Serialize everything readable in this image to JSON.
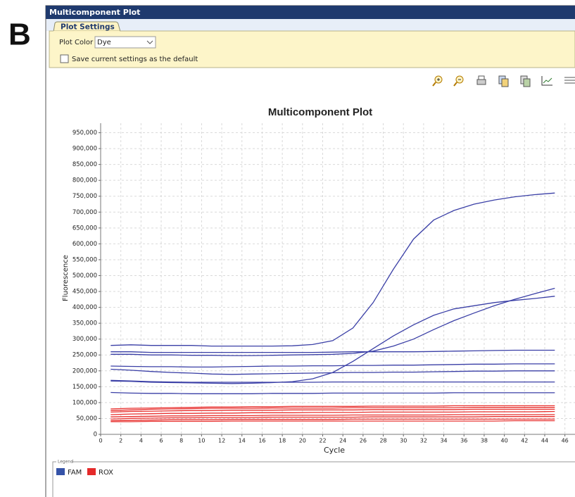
{
  "panel_label": "B",
  "window": {
    "title": "Multicomponent Plot"
  },
  "settings": {
    "tab": "Plot Settings",
    "plot_color_label": "Plot Color",
    "plot_color_value": "Dye",
    "save_default_label": "Save current settings as the default"
  },
  "legend_title": "Legend",
  "chart_data": {
    "type": "line",
    "title": "Multicomponent Plot",
    "xlabel": "Cycle",
    "ylabel": "Fluorescence",
    "x": [
      1,
      3,
      5,
      7,
      9,
      11,
      13,
      15,
      17,
      19,
      21,
      23,
      25,
      27,
      29,
      31,
      33,
      35,
      37,
      39,
      41,
      43,
      45
    ],
    "xlim": [
      0,
      47
    ],
    "xticks": [
      0,
      2,
      4,
      6,
      8,
      10,
      12,
      14,
      16,
      18,
      20,
      22,
      24,
      26,
      28,
      30,
      32,
      34,
      36,
      38,
      40,
      42,
      44,
      46
    ],
    "ylim": [
      0,
      980000
    ],
    "yticks": [
      0,
      {
        "value": 50000,
        "label": "50,000"
      },
      {
        "value": 100000,
        "label": "100,000"
      },
      {
        "value": 150000,
        "label": "150,000"
      },
      {
        "value": 200000,
        "label": "200,000"
      },
      {
        "value": 250000,
        "label": "250,000"
      },
      {
        "value": 300000,
        "label": "300,000"
      },
      {
        "value": 350000,
        "label": "350,000"
      },
      {
        "value": 400000,
        "label": "400,000"
      },
      {
        "value": 450000,
        "label": "450,000"
      },
      {
        "value": 500000,
        "label": "500,000"
      },
      {
        "value": 550000,
        "label": "550,000"
      },
      {
        "value": 600000,
        "label": "600,000"
      },
      {
        "value": 650000,
        "label": "650,000"
      },
      {
        "value": 700000,
        "label": "700,000"
      },
      {
        "value": 750000,
        "label": "750,000"
      },
      {
        "value": 800000,
        "label": "800,000"
      },
      {
        "value": 850000,
        "label": "850,000"
      },
      {
        "value": 900000,
        "label": "900,000"
      },
      {
        "value": 950000,
        "label": "950,000"
      }
    ],
    "grid": true,
    "series": [
      {
        "name": "FAM",
        "color": "#3a3fa6",
        "legend_color": "#3553a8",
        "values": [
          [
            280000,
            282000,
            280000,
            280000,
            280000,
            278000,
            278000,
            278000,
            278000,
            279000,
            283000,
            295000,
            335000,
            415000,
            520000,
            615000,
            675000,
            705000,
            725000,
            738000,
            748000,
            755000,
            760000
          ],
          [
            168000,
            167000,
            164000,
            163000,
            162000,
            161000,
            160000,
            161000,
            163000,
            166000,
            175000,
            195000,
            230000,
            270000,
            310000,
            345000,
            375000,
            395000,
            405000,
            415000,
            422000,
            428000,
            435000
          ],
          [
            252000,
            252000,
            250000,
            250000,
            249000,
            249000,
            248000,
            248000,
            249000,
            250000,
            251000,
            252000,
            255000,
            262000,
            278000,
            300000,
            330000,
            358000,
            382000,
            405000,
            425000,
            443000,
            460000
          ],
          [
            260000,
            260000,
            258000,
            258000,
            258000,
            258000,
            258000,
            258000,
            258000,
            258000,
            258000,
            259000,
            260000,
            260000,
            260000,
            260000,
            261000,
            262000,
            263000,
            264000,
            265000,
            265000,
            265000
          ],
          [
            215000,
            214000,
            213000,
            213000,
            212000,
            212000,
            213000,
            214000,
            215000,
            215000,
            216000,
            216000,
            217000,
            217000,
            218000,
            218000,
            219000,
            220000,
            221000,
            221000,
            222000,
            222000,
            222000
          ],
          [
            205000,
            202000,
            198000,
            195000,
            193000,
            190000,
            189000,
            190000,
            191000,
            192000,
            193000,
            194000,
            195000,
            195000,
            196000,
            196000,
            197000,
            198000,
            199000,
            199000,
            200000,
            200000,
            200000
          ],
          [
            170000,
            168000,
            166000,
            165000,
            164000,
            164000,
            164000,
            164000,
            164000,
            164000,
            164000,
            165000,
            165000,
            165000,
            165000,
            165000,
            165000,
            165000,
            165000,
            165000,
            165000,
            165000,
            165000
          ],
          [
            132000,
            130000,
            129000,
            129000,
            128000,
            128000,
            128000,
            128000,
            129000,
            129000,
            129000,
            130000,
            130000,
            130000,
            130000,
            130000,
            130000,
            131000,
            131000,
            131000,
            131000,
            131000,
            131000
          ]
        ]
      },
      {
        "name": "ROX",
        "color": "#e8312f",
        "legend_color": "#e52a2a",
        "values": [
          [
            80000,
            82000,
            83000,
            84000,
            85000,
            86000,
            86000,
            87000,
            87000,
            88000,
            88000,
            88000,
            88000,
            89000,
            89000,
            89000,
            89000,
            90000,
            90000,
            90000,
            90000,
            90000,
            90000
          ],
          [
            75000,
            77000,
            79000,
            80000,
            81000,
            82000,
            82000,
            82000,
            83000,
            83000,
            83000,
            83000,
            84000,
            84000,
            84000,
            84000,
            84000,
            84000,
            85000,
            85000,
            85000,
            85000,
            85000
          ],
          [
            70000,
            72000,
            73000,
            74000,
            75000,
            75000,
            76000,
            76000,
            76000,
            77000,
            77000,
            77000,
            77000,
            78000,
            78000,
            78000,
            78000,
            78000,
            79000,
            79000,
            79000,
            79000,
            79000
          ],
          [
            62000,
            64000,
            65000,
            66000,
            66000,
            67000,
            67000,
            68000,
            68000,
            68000,
            69000,
            69000,
            69000,
            70000,
            70000,
            70000,
            70000,
            70000,
            71000,
            71000,
            71000,
            71000,
            72000
          ],
          [
            55000,
            56000,
            57000,
            58000,
            58000,
            59000,
            59000,
            59000,
            60000,
            60000,
            60000,
            60000,
            61000,
            61000,
            61000,
            61000,
            61000,
            62000,
            62000,
            62000,
            62000,
            62000,
            62000
          ],
          [
            48000,
            50000,
            51000,
            52000,
            52000,
            53000,
            53000,
            53000,
            54000,
            54000,
            54000,
            54000,
            54000,
            55000,
            55000,
            55000,
            55000,
            55000,
            55000,
            56000,
            56000,
            56000,
            56000
          ],
          [
            43000,
            44000,
            45000,
            46000,
            46000,
            46000,
            47000,
            47000,
            47000,
            47000,
            47000,
            47000,
            48000,
            48000,
            48000,
            48000,
            48000,
            48000,
            48000,
            48000,
            48000,
            48000,
            48000
          ],
          [
            40000,
            40000,
            41000,
            41000,
            41000,
            41000,
            42000,
            42000,
            42000,
            42000,
            42000,
            42000,
            42000,
            42000,
            42000,
            42000,
            42000,
            42000,
            42000,
            42000,
            43000,
            43000,
            43000
          ]
        ]
      }
    ]
  }
}
